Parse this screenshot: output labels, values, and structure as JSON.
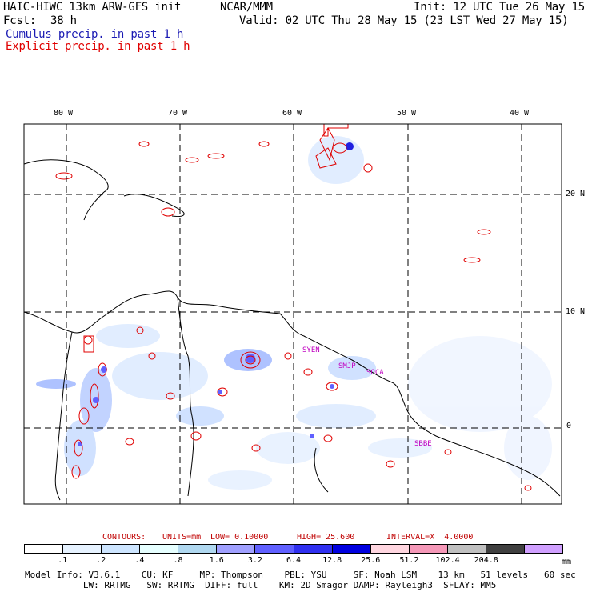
{
  "header": {
    "model": "HAIC-HIWC 13km ARW-GFS init",
    "org": "NCAR/MMM",
    "init": "Init: 12 UTC Tue 26 May 15",
    "fcst_label": "Fcst:",
    "fcst_value": "38 h",
    "valid": "Valid: 02 UTC Thu 28 May 15 (23 LST Wed 27 May 15)",
    "legend_cumulus": "Cumulus precip. in past 1 h",
    "legend_explicit": "Explicit precip. in past 1 h"
  },
  "colors": {
    "cumulus": "#1a1ab3",
    "explicit": "#e00000",
    "contours": "#c00000",
    "station": "#c000c0"
  },
  "axes": {
    "lon_labels": [
      "80 W",
      "70 W",
      "60 W",
      "50 W",
      "40 W"
    ],
    "lat_labels": [
      "20 N",
      "10 N",
      "0"
    ]
  },
  "stations": [
    "SYEN",
    "SMJP",
    "SOCA",
    "SBBE"
  ],
  "contour_info": {
    "contours": "CONTOURS:",
    "units": "UNITS=mm",
    "low": "LOW= 0.10000",
    "high": "HIGH= 25.600",
    "interval": "INTERVAL=X  4.0000"
  },
  "colorbar": {
    "labels": [
      ".1",
      ".2",
      ".4",
      ".8",
      "1.6",
      "3.2",
      "6.4",
      "12.8",
      "25.6",
      "51.2",
      "102.4",
      "204.8"
    ],
    "colors": [
      "#ffffff",
      "#e6f2ff",
      "#cde5ff",
      "#e6ffff",
      "#b0d8f0",
      "#a0a0ff",
      "#6060ff",
      "#3030f0",
      "#0000e0",
      "#ffd6e0",
      "#f598b8",
      "#c0c0c0",
      "#404040",
      "#d0a0ff"
    ],
    "unit": "mm"
  },
  "model_info": {
    "line1": "Model Info: V3.6.1    CU: KF     MP: Thompson    PBL: YSU     SF: Noah LSM    13 km   51 levels   60 sec",
    "line2": "           LW: RRTMG   SW: RRTMG  DIFF: full    KM: 2D Smagor DAMP: Rayleigh3  SFLAY: MM5"
  }
}
